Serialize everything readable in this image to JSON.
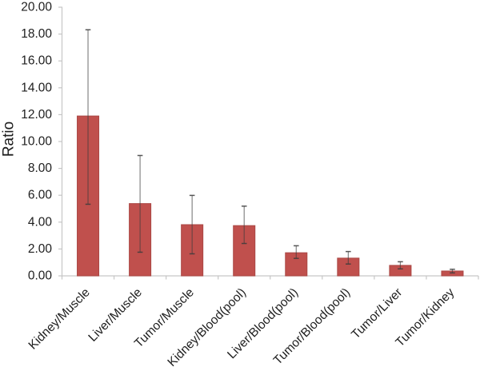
{
  "chart_data": {
    "type": "bar",
    "title": "",
    "xlabel": "",
    "ylabel": "Ratio",
    "ylim": [
      0,
      20
    ],
    "ytick_step": 2,
    "yticks": [
      "0.00",
      "2.00",
      "4.00",
      "6.00",
      "8.00",
      "10.00",
      "12.00",
      "14.00",
      "16.00",
      "18.00",
      "20.00"
    ],
    "grid": false,
    "legend": false,
    "categories": [
      "Kidney/Muscle",
      "Liver/Muscle",
      "Tumor/Muscle",
      "Kidney/Blood(pool)",
      "Liver/Blood(pool)",
      "Tumor/Blood(pool)",
      "Tumor/Liver",
      "Tumor/Kidney"
    ],
    "values": [
      11.9,
      5.38,
      3.81,
      3.74,
      1.72,
      1.32,
      0.78,
      0.36
    ],
    "error_low": [
      5.33,
      1.76,
      1.64,
      2.41,
      1.3,
      0.88,
      0.52,
      0.22
    ],
    "error_high": [
      18.32,
      8.96,
      5.99,
      5.19,
      2.24,
      1.81,
      1.05,
      0.49
    ]
  },
  "colors": {
    "background": "#ffffff",
    "bar_fill": "#c0504d",
    "bar_edge": "#aa4744",
    "axis_line": "#c6c6c6",
    "error_bar": "#3c3c3c",
    "text": "#1e1e1e"
  }
}
